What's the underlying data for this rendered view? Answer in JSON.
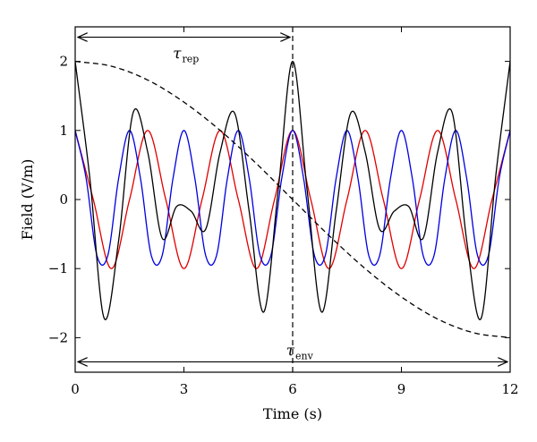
{
  "chart_data": {
    "type": "line",
    "title": "",
    "xlabel": "Time (s)",
    "ylabel": "Field (V/m)",
    "xlim": [
      0,
      12
    ],
    "ylim": [
      -2.5,
      2.5
    ],
    "xticks": [
      0,
      3,
      6,
      9,
      12
    ],
    "yticks": [
      -2,
      -1,
      0,
      1,
      2
    ],
    "xtick_labels": [
      "0",
      "3",
      "6",
      "9",
      "12"
    ],
    "ytick_labels": [
      "−2",
      "−1",
      "0",
      "1",
      "2"
    ],
    "grid": false,
    "legend": "none",
    "series": [
      {
        "color": "#e00000",
        "style": "solid",
        "x": [
          0,
          0.5,
          1,
          1.5,
          2,
          2.5,
          3,
          3.5,
          4,
          4.5,
          5,
          5.5,
          6,
          6.5,
          7,
          7.5,
          8,
          8.5,
          9,
          9.5,
          10,
          10.5,
          11,
          11.5,
          12
        ],
        "values": [
          1,
          0,
          -1,
          0,
          1,
          0,
          -1,
          0,
          1,
          0,
          -1,
          0,
          1,
          0,
          -1,
          0,
          1,
          0,
          -1,
          0,
          1,
          0,
          -1,
          0,
          1
        ]
      },
      {
        "color": "#0000e0",
        "style": "solid",
        "x": [
          0,
          0.3,
          0.6,
          0.9,
          1.2,
          1.5,
          1.8,
          2.1,
          2.4,
          2.7,
          3.0,
          3.3,
          3.6,
          3.9,
          4.2,
          4.5,
          4.8,
          5.1,
          5.4,
          5.7,
          6.0,
          6.3,
          6.6,
          6.9,
          7.2,
          7.5,
          7.8,
          8.1,
          8.4,
          8.7,
          9.0,
          9.3,
          9.6,
          9.9,
          10.2,
          10.5,
          10.8,
          11.1,
          11.4,
          11.7,
          12.0
        ],
        "values": [
          1,
          0.31,
          -0.81,
          -0.81,
          0.31,
          1,
          0.31,
          -0.81,
          -0.81,
          0.31,
          1,
          0.31,
          -0.81,
          -0.81,
          0.31,
          1,
          0.31,
          -0.81,
          -0.81,
          0.31,
          1,
          0.31,
          -0.81,
          -0.81,
          0.31,
          1,
          0.31,
          -0.81,
          -0.81,
          0.31,
          1,
          0.31,
          -0.81,
          -0.81,
          0.31,
          1,
          0.31,
          -0.81,
          -0.81,
          0.31,
          1
        ]
      },
      {
        "color": "#000000",
        "style": "solid",
        "x": [
          0,
          0.4,
          0.8,
          1.2,
          1.6,
          2.0,
          2.4,
          2.8,
          3.2,
          3.6,
          4.0,
          4.4,
          4.8,
          5.2,
          5.6,
          6.0,
          6.4,
          6.8,
          7.2,
          7.6,
          8.0,
          8.4,
          8.8,
          9.2,
          9.6,
          10.0,
          10.4,
          10.8,
          11.2,
          11.6,
          12.0
        ],
        "values": [
          2.0,
          0.33,
          -1.72,
          -0.59,
          1.26,
          0.69,
          -0.56,
          -0.1,
          -0.17,
          -0.43,
          0.69,
          1.25,
          -0.17,
          -1.63,
          0.13,
          2.0,
          0.13,
          -1.63,
          -0.17,
          1.25,
          0.69,
          -0.43,
          -0.17,
          -0.1,
          -0.56,
          0.69,
          1.26,
          -0.59,
          -1.72,
          0.33,
          2.0
        ]
      },
      {
        "color": "#000000",
        "style": "dashed",
        "x": [
          0,
          1,
          2,
          3,
          4,
          5,
          6,
          7,
          8,
          9,
          10,
          11,
          12
        ],
        "values": [
          2.0,
          1.93,
          1.73,
          1.41,
          1.0,
          0.52,
          0.0,
          -0.52,
          -1.0,
          -1.41,
          -1.73,
          -1.93,
          -2.0
        ]
      }
    ],
    "annotations": {
      "vline_x": 6,
      "rep": {
        "symbol": "τ",
        "subscript": "rep",
        "x_from": 0,
        "x_to": 6,
        "y": 2.35
      },
      "env": {
        "symbol": "τ",
        "subscript": "env",
        "x_from": 0,
        "x_to": 12,
        "y": -2.35
      }
    }
  }
}
